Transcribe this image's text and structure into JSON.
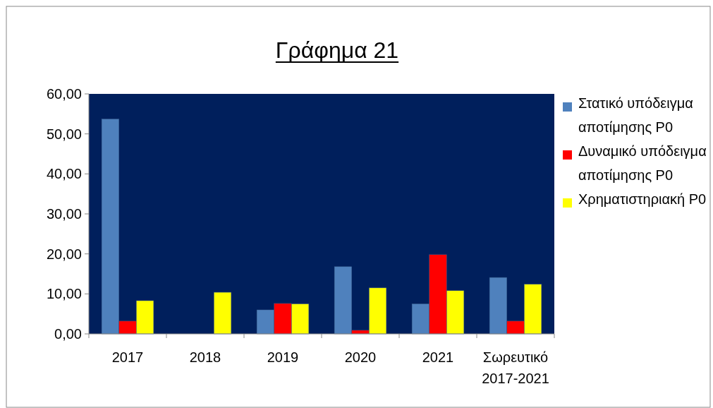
{
  "chart_data": {
    "type": "bar",
    "title": "Γράφημα 21",
    "categories": [
      "2017",
      "2018",
      "2019",
      "2020",
      "2021",
      "Σωρευτικό 2017-2021"
    ],
    "series": [
      {
        "name": "Στατικό υπόδειγμα αποτίμησης P0",
        "color": "#4f81bd",
        "values": [
          53.7,
          null,
          6.0,
          16.8,
          7.5,
          14.1
        ]
      },
      {
        "name": "Δυναμικό υπόδειγμα αποτίμησης P0",
        "color": "#ff0000",
        "values": [
          3.2,
          null,
          7.6,
          0.9,
          19.8,
          3.2
        ]
      },
      {
        "name": "Χρηματιστηριακή P0",
        "color": "#ffff00",
        "values": [
          8.3,
          10.4,
          7.5,
          11.5,
          10.8,
          12.4
        ]
      }
    ],
    "ylim": [
      0,
      60
    ],
    "yticks": [
      {
        "value": 0,
        "label": "0,00"
      },
      {
        "value": 10,
        "label": "10,00"
      },
      {
        "value": 20,
        "label": "20,00"
      },
      {
        "value": 30,
        "label": "30,00"
      },
      {
        "value": 40,
        "label": "40,00"
      },
      {
        "value": 50,
        "label": "50,00"
      },
      {
        "value": 60,
        "label": "60,00"
      }
    ],
    "grid": false,
    "legend": "right"
  }
}
